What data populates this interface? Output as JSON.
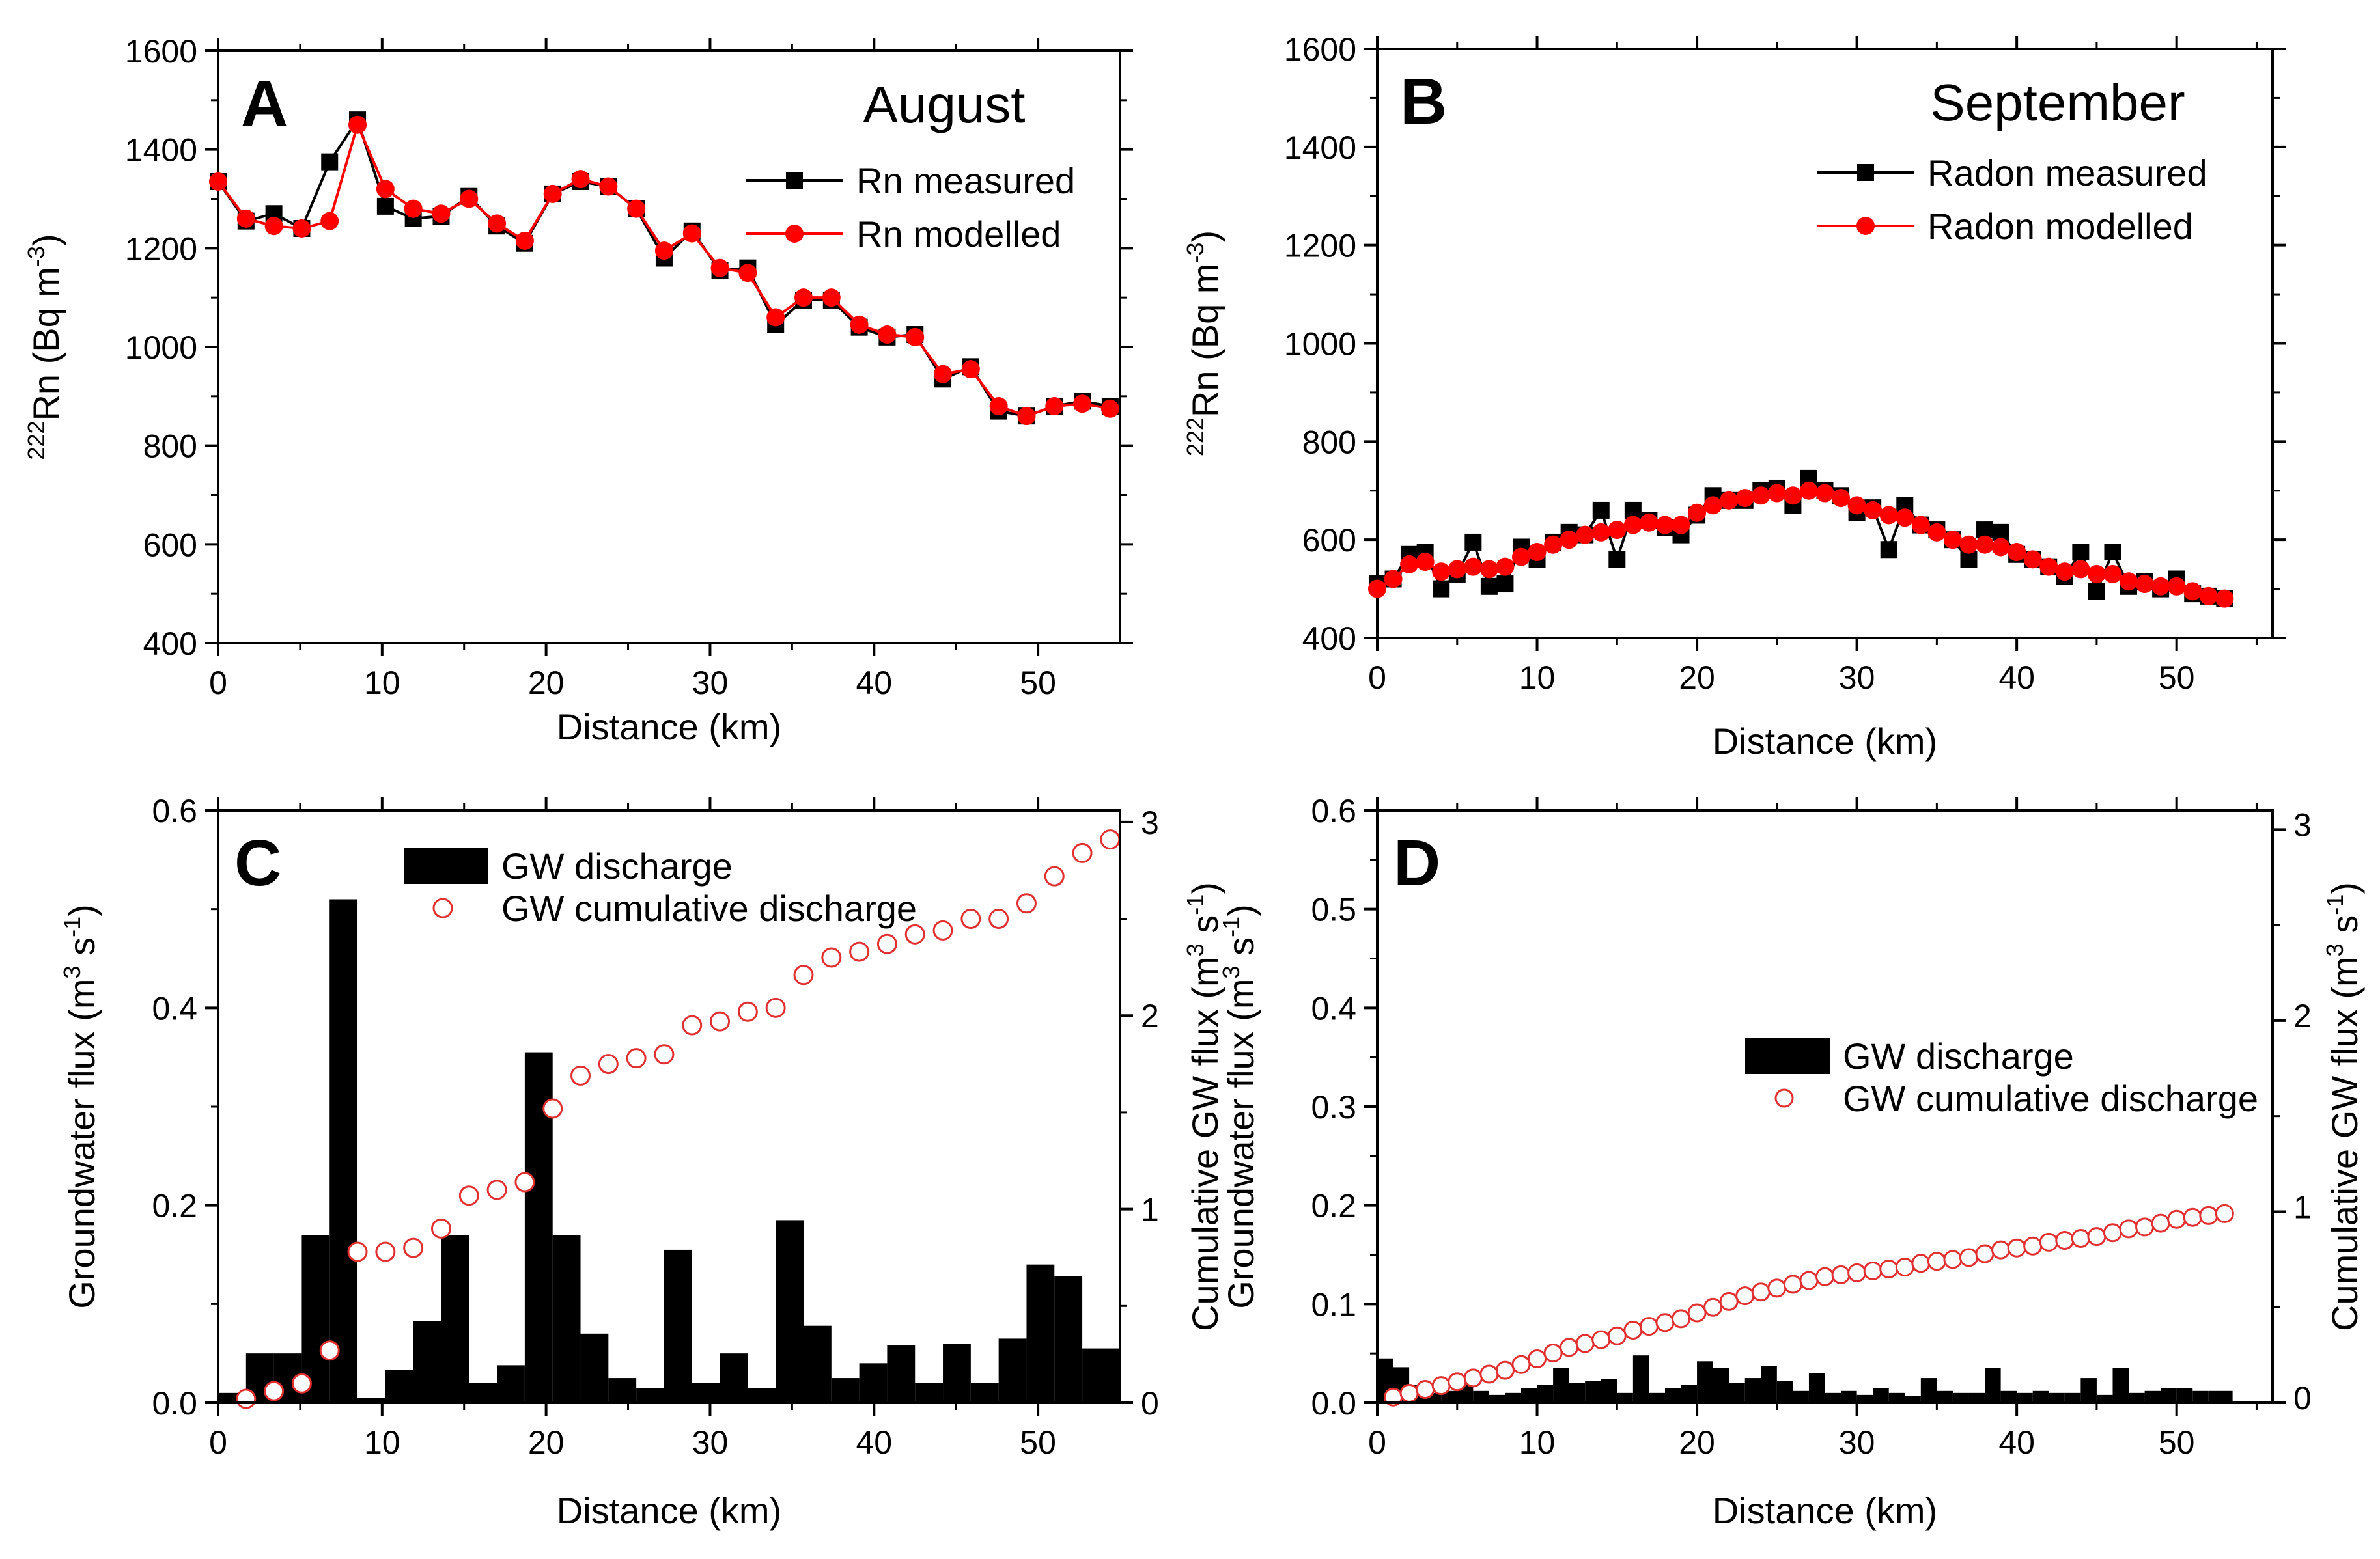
{
  "chart_data": [
    {
      "panel": "A",
      "type": "line",
      "title": "August",
      "panel_label": "A",
      "xlabel": "Distance (km)",
      "ylabel_sup": "222",
      "ylabel_main": "Rn (Bq m",
      "ylabel_exp": "-3",
      "ylabel_close": ")",
      "xlim": [
        0,
        55
      ],
      "ylim": [
        400,
        1600
      ],
      "xticks": [
        0,
        10,
        20,
        30,
        40,
        50
      ],
      "yticks": [
        400,
        600,
        800,
        1000,
        1200,
        1400,
        1600
      ],
      "series": [
        {
          "name": "Rn measured",
          "color": "#000000",
          "marker": "square",
          "x": [
            0,
            1.7,
            3.4,
            5.1,
            6.8,
            8.5,
            10.2,
            11.9,
            13.6,
            15.3,
            17.0,
            18.7,
            20.4,
            22.1,
            23.8,
            25.5,
            27.2,
            28.9,
            30.6,
            32.3,
            34.0,
            35.7,
            37.4,
            39.1,
            40.8,
            42.5,
            44.2,
            45.9,
            47.6,
            49.3,
            51.0,
            52.7,
            54.4
          ],
          "values": [
            1335,
            1255,
            1270,
            1240,
            1375,
            1460,
            1285,
            1260,
            1265,
            1305,
            1245,
            1210,
            1310,
            1335,
            1325,
            1280,
            1180,
            1235,
            1155,
            1160,
            1045,
            1095,
            1095,
            1040,
            1020,
            1025,
            935,
            960,
            870,
            860,
            880,
            890,
            880
          ]
        },
        {
          "name": "Rn modelled",
          "color": "#ff0000",
          "marker": "circle",
          "x": [
            0,
            1.7,
            3.4,
            5.1,
            6.8,
            8.5,
            10.2,
            11.9,
            13.6,
            15.3,
            17.0,
            18.7,
            20.4,
            22.1,
            23.8,
            25.5,
            27.2,
            28.9,
            30.6,
            32.3,
            34.0,
            35.7,
            37.4,
            39.1,
            40.8,
            42.5,
            44.2,
            45.9,
            47.6,
            49.3,
            51.0,
            52.7,
            54.4
          ],
          "values": [
            1335,
            1260,
            1245,
            1240,
            1255,
            1450,
            1320,
            1280,
            1270,
            1300,
            1250,
            1215,
            1310,
            1340,
            1325,
            1280,
            1195,
            1230,
            1160,
            1150,
            1060,
            1100,
            1100,
            1045,
            1025,
            1020,
            945,
            955,
            880,
            860,
            880,
            885,
            875
          ]
        }
      ]
    },
    {
      "panel": "B",
      "type": "line",
      "title": "September",
      "panel_label": "B",
      "xlabel": "Distance (km)",
      "ylabel_sup": "222",
      "ylabel_main": "Rn (Bq m",
      "ylabel_exp": "-3",
      "ylabel_close": ")",
      "xlim": [
        0,
        56
      ],
      "ylim": [
        400,
        1600
      ],
      "xticks": [
        0,
        10,
        20,
        30,
        40,
        50
      ],
      "yticks": [
        400,
        600,
        800,
        1000,
        1200,
        1400,
        1600
      ],
      "series": [
        {
          "name": "Radon measured",
          "color": "#000000",
          "marker": "square",
          "x": [
            0,
            1,
            2,
            3,
            4,
            5,
            6,
            7,
            8,
            9,
            10,
            11,
            12,
            13,
            14,
            15,
            16,
            17,
            18,
            19,
            20,
            21,
            22,
            23,
            24,
            25,
            26,
            27,
            28,
            29,
            30,
            31,
            32,
            33,
            34,
            35,
            36,
            37,
            38,
            39,
            40,
            41,
            42,
            43,
            44,
            45,
            46,
            47,
            48,
            49,
            50,
            51,
            52,
            53
          ],
          "values": [
            510,
            520,
            570,
            575,
            500,
            530,
            595,
            505,
            510,
            585,
            560,
            595,
            615,
            610,
            660,
            560,
            660,
            640,
            625,
            610,
            650,
            690,
            680,
            680,
            700,
            705,
            670,
            725,
            700,
            690,
            655,
            665,
            580,
            670,
            630,
            620,
            600,
            560,
            620,
            615,
            570,
            560,
            545,
            525,
            575,
            495,
            575,
            505,
            515,
            500,
            520,
            490,
            485,
            480
          ]
        },
        {
          "name": "Radon modelled",
          "color": "#ff0000",
          "marker": "circle",
          "x": [
            0,
            1,
            2,
            3,
            4,
            5,
            6,
            7,
            8,
            9,
            10,
            11,
            12,
            13,
            14,
            15,
            16,
            17,
            18,
            19,
            20,
            21,
            22,
            23,
            24,
            25,
            26,
            27,
            28,
            29,
            30,
            31,
            32,
            33,
            34,
            35,
            36,
            37,
            38,
            39,
            40,
            41,
            42,
            43,
            44,
            45,
            46,
            47,
            48,
            49,
            50,
            51,
            52,
            53
          ],
          "values": [
            500,
            520,
            550,
            555,
            535,
            540,
            545,
            540,
            545,
            565,
            575,
            590,
            600,
            610,
            615,
            620,
            630,
            635,
            630,
            630,
            655,
            670,
            680,
            685,
            690,
            695,
            690,
            700,
            695,
            685,
            670,
            660,
            650,
            645,
            630,
            615,
            600,
            590,
            590,
            585,
            575,
            560,
            545,
            535,
            540,
            530,
            530,
            515,
            510,
            505,
            505,
            495,
            485,
            480
          ]
        }
      ]
    },
    {
      "panel": "C",
      "type": "bar",
      "panel_label": "C",
      "xlabel": "Distance (km)",
      "ylabel": "Groundwater flux (m",
      "ylabel_exp": "3",
      "ylabel_mid": " s",
      "ylabel_exp2": "-1",
      "ylabel_close": ")",
      "y2label": "Cumulative GW flux (m",
      "xlim": [
        0,
        55
      ],
      "ylim": [
        0,
        0.6
      ],
      "y2lim": [
        0,
        3.06
      ],
      "xticks": [
        0,
        10,
        20,
        30,
        40,
        50
      ],
      "yticks": [
        0.0,
        0.2,
        0.4,
        0.6
      ],
      "y2ticks": [
        0,
        1,
        2,
        3
      ],
      "series": [
        {
          "name": "GW discharge",
          "color": "#000000",
          "x_start": [
            0,
            1.7,
            3.4,
            5.1,
            6.8,
            8.5,
            10.2,
            11.9,
            13.6,
            15.3,
            17.0,
            18.7,
            20.4,
            22.1,
            23.8,
            25.5,
            27.2,
            28.9,
            30.6,
            32.3,
            34.0,
            35.7,
            37.4,
            39.1,
            40.8,
            42.5,
            44.2,
            45.9,
            47.6,
            49.3,
            51.0,
            52.7
          ],
          "x_end": [
            1.7,
            3.4,
            5.1,
            6.8,
            8.5,
            10.2,
            11.9,
            13.6,
            15.3,
            17.0,
            18.7,
            20.4,
            22.1,
            23.8,
            25.5,
            27.2,
            28.9,
            30.6,
            32.3,
            34.0,
            35.7,
            37.4,
            39.1,
            40.8,
            42.5,
            44.2,
            45.9,
            47.6,
            49.3,
            51.0,
            52.7,
            55.0
          ],
          "values": [
            0.01,
            0.05,
            0.05,
            0.17,
            0.51,
            0.005,
            0.033,
            0.083,
            0.17,
            0.02,
            0.038,
            0.355,
            0.17,
            0.07,
            0.025,
            0.015,
            0.155,
            0.02,
            0.05,
            0.015,
            0.185,
            0.078,
            0.025,
            0.04,
            0.058,
            0.02,
            0.06,
            0.02,
            0.065,
            0.14,
            0.128,
            0.055
          ]
        },
        {
          "name": "GW cumulative discharge",
          "color": "#e03030",
          "marker": "open-circle",
          "axis": "right",
          "x": [
            1.7,
            3.4,
            5.1,
            6.8,
            8.5,
            10.2,
            11.9,
            13.6,
            15.3,
            17.0,
            18.7,
            20.4,
            22.1,
            23.8,
            25.5,
            27.2,
            28.9,
            30.6,
            32.3,
            34.0,
            35.7,
            37.4,
            39.1,
            40.8,
            42.5,
            44.2,
            45.9,
            47.6,
            49.3,
            51.0,
            52.7,
            54.4
          ],
          "values": [
            0.02,
            0.06,
            0.1,
            0.27,
            0.78,
            0.78,
            0.8,
            0.9,
            1.07,
            1.1,
            1.14,
            1.52,
            1.69,
            1.75,
            1.78,
            1.8,
            1.95,
            1.97,
            2.02,
            2.04,
            2.21,
            2.3,
            2.33,
            2.37,
            2.42,
            2.44,
            2.5,
            2.5,
            2.58,
            2.72,
            2.84,
            2.91
          ]
        }
      ]
    },
    {
      "panel": "D",
      "type": "bar",
      "panel_label": "D",
      "xlabel": "Distance (km)",
      "ylabel": "Groundwater flux (m",
      "ylabel_exp": "3",
      "ylabel_mid": " s",
      "ylabel_exp2": "-1",
      "ylabel_close": ")",
      "y2label": "Cumulative GW flux (m",
      "xlim": [
        0,
        56
      ],
      "ylim": [
        0,
        0.6
      ],
      "y2lim": [
        0,
        3.1
      ],
      "xticks": [
        0,
        10,
        20,
        30,
        40,
        50
      ],
      "yticks": [
        0.0,
        0.1,
        0.2,
        0.3,
        0.4,
        0.5,
        0.6
      ],
      "y2ticks": [
        0,
        1,
        2,
        3
      ],
      "series": [
        {
          "name": "GW discharge",
          "color": "#000000",
          "x_start": [
            0,
            1,
            2,
            3,
            4,
            5,
            6,
            7,
            8,
            9,
            10,
            11,
            12,
            13,
            14,
            15,
            16,
            17,
            18,
            19,
            20,
            21,
            22,
            23,
            24,
            25,
            26,
            27,
            28,
            29,
            30,
            31,
            32,
            33,
            34,
            35,
            36,
            37,
            38,
            39,
            40,
            41,
            42,
            43,
            44,
            45,
            46,
            47,
            48,
            49,
            50,
            51,
            52
          ],
          "x_end": [
            1,
            2,
            3,
            4,
            5,
            6,
            7,
            8,
            9,
            10,
            11,
            12,
            13,
            14,
            15,
            16,
            17,
            18,
            19,
            20,
            21,
            22,
            23,
            24,
            25,
            26,
            27,
            28,
            29,
            30,
            31,
            32,
            33,
            34,
            35,
            36,
            37,
            38,
            39,
            40,
            41,
            42,
            43,
            44,
            45,
            46,
            47,
            48,
            49,
            50,
            51,
            52,
            53.5
          ],
          "values": [
            0.045,
            0.036,
            0.018,
            0.01,
            0.012,
            0.02,
            0.012,
            0.008,
            0.01,
            0.015,
            0.018,
            0.035,
            0.02,
            0.022,
            0.024,
            0.01,
            0.048,
            0.01,
            0.015,
            0.018,
            0.042,
            0.035,
            0.02,
            0.025,
            0.037,
            0.022,
            0.012,
            0.03,
            0.01,
            0.012,
            0.008,
            0.015,
            0.01,
            0.007,
            0.025,
            0.012,
            0.01,
            0.01,
            0.035,
            0.012,
            0.01,
            0.012,
            0.01,
            0.01,
            0.025,
            0.008,
            0.035,
            0.01,
            0.012,
            0.015,
            0.015,
            0.012,
            0.012
          ]
        },
        {
          "name": "GW cumulative discharge",
          "color": "#e03030",
          "marker": "open-circle",
          "axis": "right",
          "x": [
            1,
            2,
            3,
            4,
            5,
            6,
            7,
            8,
            9,
            10,
            11,
            12,
            13,
            14,
            15,
            16,
            17,
            18,
            19,
            20,
            21,
            22,
            23,
            24,
            25,
            26,
            27,
            28,
            29,
            30,
            31,
            32,
            33,
            34,
            35,
            36,
            37,
            38,
            39,
            40,
            41,
            42,
            43,
            44,
            45,
            46,
            47,
            48,
            49,
            50,
            51,
            52,
            53
          ],
          "values": [
            0.03,
            0.05,
            0.07,
            0.09,
            0.11,
            0.13,
            0.15,
            0.17,
            0.2,
            0.23,
            0.26,
            0.29,
            0.31,
            0.33,
            0.35,
            0.38,
            0.4,
            0.42,
            0.44,
            0.47,
            0.5,
            0.53,
            0.56,
            0.58,
            0.6,
            0.62,
            0.64,
            0.66,
            0.67,
            0.68,
            0.69,
            0.7,
            0.71,
            0.73,
            0.74,
            0.75,
            0.76,
            0.78,
            0.8,
            0.81,
            0.82,
            0.84,
            0.85,
            0.86,
            0.87,
            0.89,
            0.91,
            0.92,
            0.94,
            0.96,
            0.97,
            0.98,
            0.99
          ]
        }
      ]
    }
  ]
}
